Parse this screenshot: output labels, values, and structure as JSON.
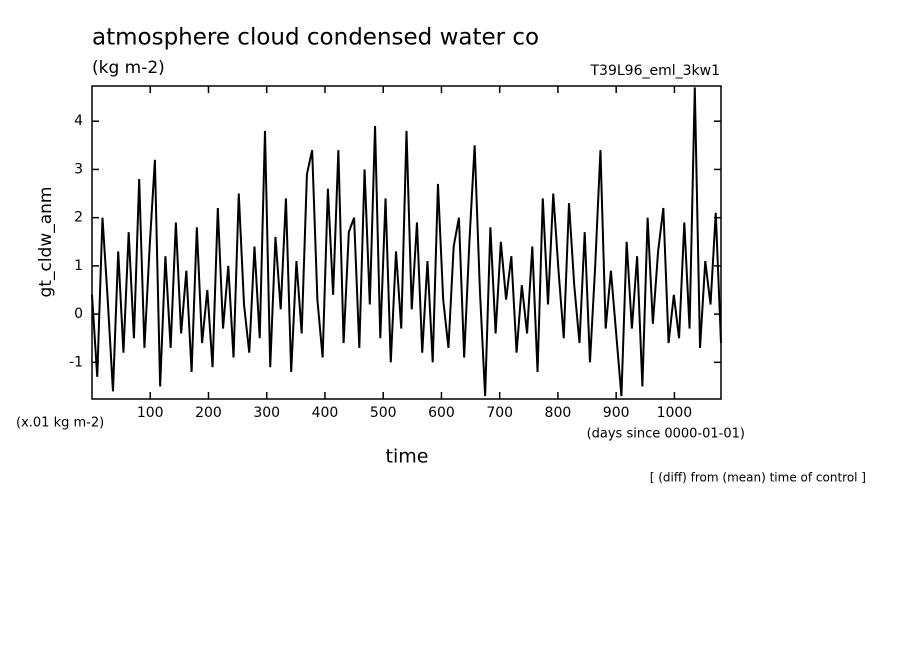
{
  "chart_data": {
    "type": "line",
    "title": "atmosphere cloud condensed water co",
    "subtitle": "(kg m-2)",
    "run_label": "T39L96_eml_3kw1",
    "y_label": "gt_cldw_anm",
    "y_unit_label": "(x.01 kg m-2)",
    "x_label": "time",
    "x_unit_label": "(days since 0000-01-01)",
    "note": "[ (diff) from (mean) time of control ]",
    "color": "#000000",
    "xlim": [
      0,
      1080
    ],
    "ylim": [
      -1.76,
      4.73
    ],
    "xticks": [
      100,
      200,
      300,
      400,
      500,
      600,
      700,
      800,
      900,
      1000
    ],
    "yticks": [
      -1,
      0,
      1,
      2,
      3,
      4
    ],
    "x": [
      0,
      9,
      18,
      27,
      36,
      45,
      54,
      63,
      72,
      81,
      90,
      99,
      108,
      117,
      126,
      135,
      144,
      153,
      162,
      171,
      180,
      189,
      198,
      207,
      216,
      225,
      234,
      243,
      252,
      261,
      270,
      279,
      288,
      297,
      306,
      315,
      324,
      333,
      342,
      351,
      360,
      369,
      378,
      387,
      396,
      405,
      414,
      423,
      432,
      441,
      450,
      459,
      468,
      477,
      486,
      495,
      504,
      513,
      522,
      531,
      540,
      549,
      558,
      567,
      576,
      585,
      594,
      603,
      612,
      621,
      630,
      639,
      648,
      657,
      666,
      675,
      684,
      693,
      702,
      711,
      720,
      729,
      738,
      747,
      756,
      765,
      774,
      783,
      792,
      801,
      810,
      819,
      828,
      837,
      846,
      855,
      864,
      873,
      882,
      891,
      900,
      909,
      918,
      927,
      936,
      945,
      954,
      963,
      972,
      981,
      990,
      999,
      1008,
      1017,
      1026,
      1035,
      1044,
      1053,
      1062,
      1071,
      1080
    ],
    "values": [
      0.4,
      -1.3,
      2.0,
      0.3,
      -1.6,
      1.3,
      -0.8,
      1.7,
      -0.5,
      2.8,
      -0.7,
      1.4,
      3.2,
      -1.5,
      1.2,
      -0.7,
      1.9,
      -0.4,
      0.9,
      -1.2,
      1.8,
      -0.6,
      0.5,
      -1.1,
      2.2,
      -0.3,
      1.0,
      -0.9,
      2.5,
      0.2,
      -0.8,
      1.4,
      -0.5,
      3.8,
      -1.1,
      1.6,
      0.1,
      2.4,
      -1.2,
      1.1,
      -0.4,
      2.9,
      3.4,
      0.3,
      -0.9,
      2.6,
      0.4,
      3.4,
      -0.6,
      1.7,
      2.0,
      -0.7,
      3.0,
      0.2,
      3.9,
      -0.5,
      2.4,
      -1.0,
      1.3,
      -0.3,
      3.8,
      0.1,
      1.9,
      -0.8,
      1.1,
      -1.0,
      2.7,
      0.3,
      -0.7,
      1.4,
      2.0,
      -0.9,
      1.5,
      3.5,
      0.5,
      -1.7,
      1.8,
      -0.4,
      1.5,
      0.3,
      1.2,
      -0.8,
      0.6,
      -0.4,
      1.4,
      -1.2,
      2.4,
      0.2,
      2.5,
      0.9,
      -0.5,
      2.3,
      0.6,
      -0.6,
      1.7,
      -1.0,
      1.0,
      3.4,
      -0.3,
      0.9,
      -0.4,
      -1.7,
      1.5,
      -0.3,
      1.2,
      -1.5,
      2.0,
      -0.2,
      1.3,
      2.2,
      -0.6,
      0.4,
      -0.5,
      1.9,
      -0.3,
      4.7,
      -0.7,
      1.1,
      0.2,
      2.1,
      -0.6
    ]
  }
}
